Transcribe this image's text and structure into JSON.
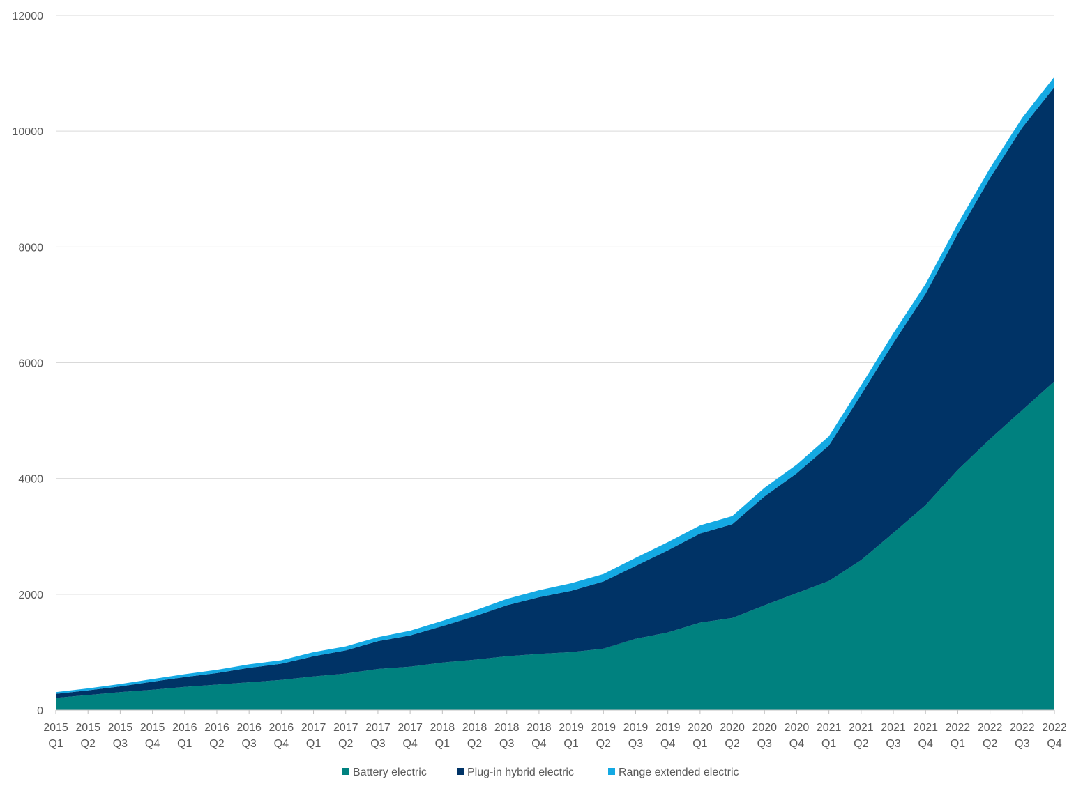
{
  "chart_data": {
    "type": "area",
    "stacked": true,
    "title": "",
    "xlabel": "",
    "ylabel": "",
    "ylim": [
      0,
      12000
    ],
    "yticks": [
      0,
      2000,
      4000,
      6000,
      8000,
      10000,
      12000
    ],
    "grid": true,
    "legend_position": "bottom",
    "categories": [
      [
        "2015",
        "Q1"
      ],
      [
        "2015",
        "Q2"
      ],
      [
        "2015",
        "Q3"
      ],
      [
        "2015",
        "Q4"
      ],
      [
        "2016",
        "Q1"
      ],
      [
        "2016",
        "Q2"
      ],
      [
        "2016",
        "Q3"
      ],
      [
        "2016",
        "Q4"
      ],
      [
        "2017",
        "Q1"
      ],
      [
        "2017",
        "Q2"
      ],
      [
        "2017",
        "Q3"
      ],
      [
        "2017",
        "Q4"
      ],
      [
        "2018",
        "Q1"
      ],
      [
        "2018",
        "Q2"
      ],
      [
        "2018",
        "Q3"
      ],
      [
        "2018",
        "Q4"
      ],
      [
        "2019",
        "Q1"
      ],
      [
        "2019",
        "Q2"
      ],
      [
        "2019",
        "Q3"
      ],
      [
        "2019",
        "Q4"
      ],
      [
        "2020",
        "Q1"
      ],
      [
        "2020",
        "Q2"
      ],
      [
        "2020",
        "Q3"
      ],
      [
        "2020",
        "Q4"
      ],
      [
        "2021",
        "Q1"
      ],
      [
        "2021",
        "Q2"
      ],
      [
        "2021",
        "Q3"
      ],
      [
        "2021",
        "Q4"
      ],
      [
        "2022",
        "Q1"
      ],
      [
        "2022",
        "Q2"
      ],
      [
        "2022",
        "Q3"
      ],
      [
        "2022",
        "Q4"
      ]
    ],
    "series": [
      {
        "name": "Battery electric",
        "color": "#00817F",
        "values": [
          210,
          260,
          310,
          350,
          400,
          440,
          480,
          520,
          580,
          630,
          710,
          750,
          820,
          870,
          930,
          970,
          1000,
          1060,
          1230,
          1340,
          1510,
          1590,
          1810,
          2020,
          2230,
          2590,
          3060,
          3540,
          4150,
          4680,
          5180,
          5680
        ]
      },
      {
        "name": "Plug-in hybrid electric",
        "color": "#003366",
        "values": [
          70,
          80,
          100,
          140,
          170,
          200,
          250,
          280,
          350,
          400,
          480,
          540,
          630,
          750,
          880,
          980,
          1060,
          1160,
          1260,
          1420,
          1540,
          1620,
          1880,
          2070,
          2340,
          2860,
          3280,
          3650,
          4080,
          4510,
          4880,
          5080
        ]
      },
      {
        "name": "Range extended electric",
        "color": "#14A9E3",
        "values": [
          30,
          35,
          40,
          45,
          50,
          55,
          60,
          60,
          70,
          70,
          70,
          80,
          90,
          100,
          110,
          120,
          130,
          130,
          140,
          140,
          140,
          140,
          150,
          150,
          160,
          160,
          170,
          170,
          170,
          170,
          170,
          180
        ]
      }
    ]
  }
}
